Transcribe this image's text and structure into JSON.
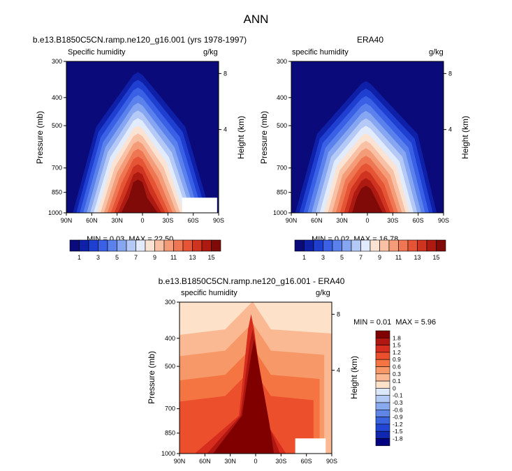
{
  "figure": {
    "title": "ANN"
  },
  "panels": [
    {
      "title": "b.e13.B1850C5CN.ramp.ne120_g16.001 (yrs 1978-1997)",
      "left_label": "Specific humidity",
      "right_label": "g/kg",
      "ylabel": "Pressure (mb)",
      "y2label": "Height (km)",
      "min_label": "MIN = ",
      "min_value": "0.03",
      "max_label": "MAX = ",
      "max_value": "22.50"
    },
    {
      "title": "ERA40",
      "left_label": "specific humidity",
      "right_label": "g/kg",
      "ylabel": "Pressure (mb)",
      "y2label": "Height (km)",
      "min_label": "MIN = ",
      "min_value": "0.02",
      "max_label": "MAX = ",
      "max_value": "16.78"
    },
    {
      "title": "b.e13.B1850C5CN.ramp.ne120_g16.001 - ERA40",
      "left_label": "specific humidity",
      "right_label": "g/kg",
      "ylabel": "Pressure (mb)",
      "y2label": "Height (km)",
      "min_label": "MIN = ",
      "min_value": "0.01",
      "max_label": "MAX = ",
      "max_value": "5.96"
    }
  ],
  "chart_data": {
    "type": "heatmap",
    "x_tick_labels": [
      "90N",
      "60N",
      "30N",
      "0",
      "30S",
      "60S",
      "90S"
    ],
    "y_tick_labels": [
      "300",
      "400",
      "500",
      "700",
      "850",
      "1000"
    ],
    "y2_tick_labels": [
      "8",
      "4"
    ],
    "colorbar_humidity": {
      "orientation": "horizontal",
      "colors": [
        "#0a0a7a",
        "#0e1fa8",
        "#1f3fd1",
        "#3a60e6",
        "#5b82ec",
        "#86a6f1",
        "#b4c9f6",
        "#e2ebfb",
        "#fbe3d3",
        "#f8c0a4",
        "#f49b78",
        "#ef7652",
        "#e55434",
        "#cf3420",
        "#ad1a12",
        "#7f0a08"
      ],
      "labels": [
        "1",
        "3",
        "5",
        "7",
        "9",
        "11",
        "13",
        "15"
      ]
    },
    "colorbar_difference": {
      "orientation": "vertical",
      "colors": [
        "#800000",
        "#b01710",
        "#d62d1e",
        "#ec4f2c",
        "#f47542",
        "#f79868",
        "#fab893",
        "#fde1c9",
        "#dce8fa",
        "#b3cbf4",
        "#89a9ee",
        "#5f86e7",
        "#3a64df",
        "#2046d3",
        "#1028b0",
        "#000080"
      ],
      "labels": [
        "1.8",
        "1.5",
        "1.2",
        "0.9",
        "0.6",
        "0.3",
        "0.1",
        "0",
        "-0.1",
        "-0.3",
        "-0.6",
        "-0.9",
        "-1.2",
        "-1.5",
        "-1.8"
      ]
    },
    "panels": [
      {
        "name": "model",
        "units": "g/kg",
        "min": 0.03,
        "max": 22.5,
        "masked_region": "lower-right (high southern latitudes below ~880 mb)"
      },
      {
        "name": "observation",
        "units": "g/kg",
        "min": 0.02,
        "max": 16.78
      },
      {
        "name": "difference",
        "units": "g/kg",
        "min": 0.01,
        "max": 5.96,
        "masked_region": "lower-right (high southern latitudes below ~880 mb)"
      }
    ]
  }
}
